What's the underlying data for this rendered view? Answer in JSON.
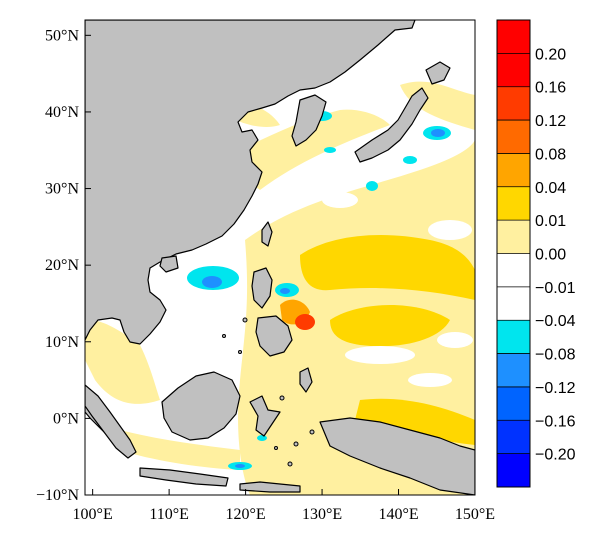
{
  "map": {
    "lon_ticks": [
      "100°E",
      "110°E",
      "120°E",
      "130°E",
      "140°E",
      "150°E"
    ],
    "lat_ticks": [
      "−10°N",
      "0°N",
      "10°N",
      "20°N",
      "30°N",
      "40°N",
      "50°N"
    ],
    "lon_range": [
      99,
      150
    ],
    "lat_range": [
      -10,
      52
    ],
    "colors": {
      "land": "#c0c0c0",
      "ocean": "#ffffff",
      "coast": "#000000"
    }
  },
  "colorbar": {
    "levels": [
      "0.20",
      "0.16",
      "0.12",
      "0.08",
      "0.04",
      "0.01",
      "0.00",
      "−0.01",
      "−0.04",
      "−0.08",
      "−0.12",
      "−0.16",
      "−0.20"
    ],
    "colors": [
      "#ff0000",
      "#ff3b00",
      "#ff6a00",
      "#ffa500",
      "#ffd700",
      "#fff0a0",
      "#ffffff",
      "#ffffff",
      "#00e5ee",
      "#1e90ff",
      "#0064ff",
      "#0032ff",
      "#0000ff"
    ]
  }
}
